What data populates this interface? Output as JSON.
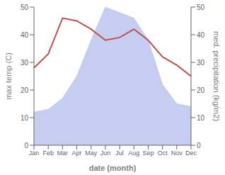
{
  "chart_data": {
    "type": "line",
    "xlabel": "date (month)",
    "ylabel": "max temp (C)",
    "y2label": "med. precipitation (kg/m2)",
    "categories": [
      "Jan",
      "Feb",
      "Mar",
      "Apr",
      "May",
      "Jun",
      "Jul",
      "Aug",
      "Sep",
      "Oct",
      "Nov",
      "Dec"
    ],
    "series": [
      {
        "type": "area",
        "axis": "y2",
        "color": "#c5cef0",
        "values": [
          12,
          13,
          17,
          25,
          38,
          50,
          48,
          46,
          38,
          22,
          15,
          14
        ]
      },
      {
        "type": "line",
        "color": "#c0504d",
        "values": [
          28,
          33,
          46,
          45,
          42,
          38,
          39,
          42,
          38,
          32,
          29,
          25
        ]
      }
    ],
    "ylim": [
      0,
      50
    ],
    "yticks": [
      0,
      10,
      20,
      30,
      40,
      50
    ],
    "y2lim": [
      0,
      50
    ],
    "y2ticks": [
      0,
      10,
      20,
      30,
      40,
      50
    ],
    "grid": false
  }
}
